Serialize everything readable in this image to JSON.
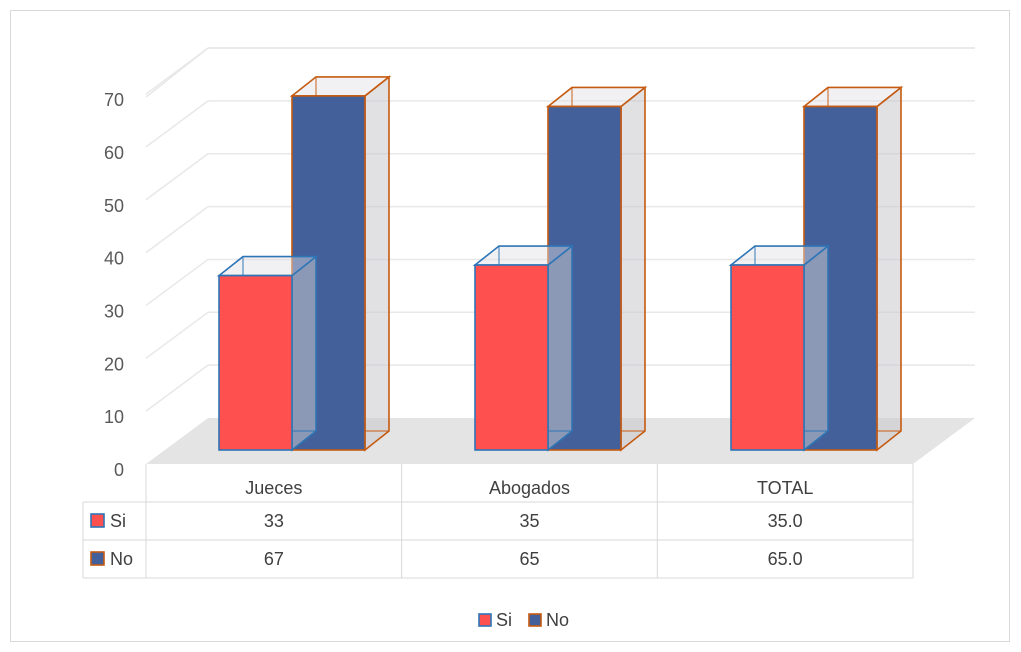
{
  "chart_data": {
    "type": "bar",
    "categories": [
      "Jueces",
      "Abogados",
      "TOTAL"
    ],
    "series": [
      {
        "name": "Si",
        "values": [
          33,
          35,
          35.0
        ],
        "labels": [
          "33",
          "35",
          "35.0"
        ]
      },
      {
        "name": "No",
        "values": [
          67,
          65,
          65.0
        ],
        "labels": [
          "67",
          "65",
          "65.0"
        ]
      }
    ],
    "y_ticks": [
      "0",
      "10",
      "20",
      "30",
      "40",
      "50",
      "60",
      "70"
    ],
    "ylim": [
      0,
      70
    ],
    "grid": true,
    "legend": "bottom",
    "data_table": true,
    "colors": {
      "si_fill": "#ff5050",
      "si_edge": "#2e75b6",
      "no_fill": "#44609a",
      "no_edge": "#c55a11",
      "grid": "#e8e8e8",
      "floor": "#e4e4e4"
    }
  }
}
